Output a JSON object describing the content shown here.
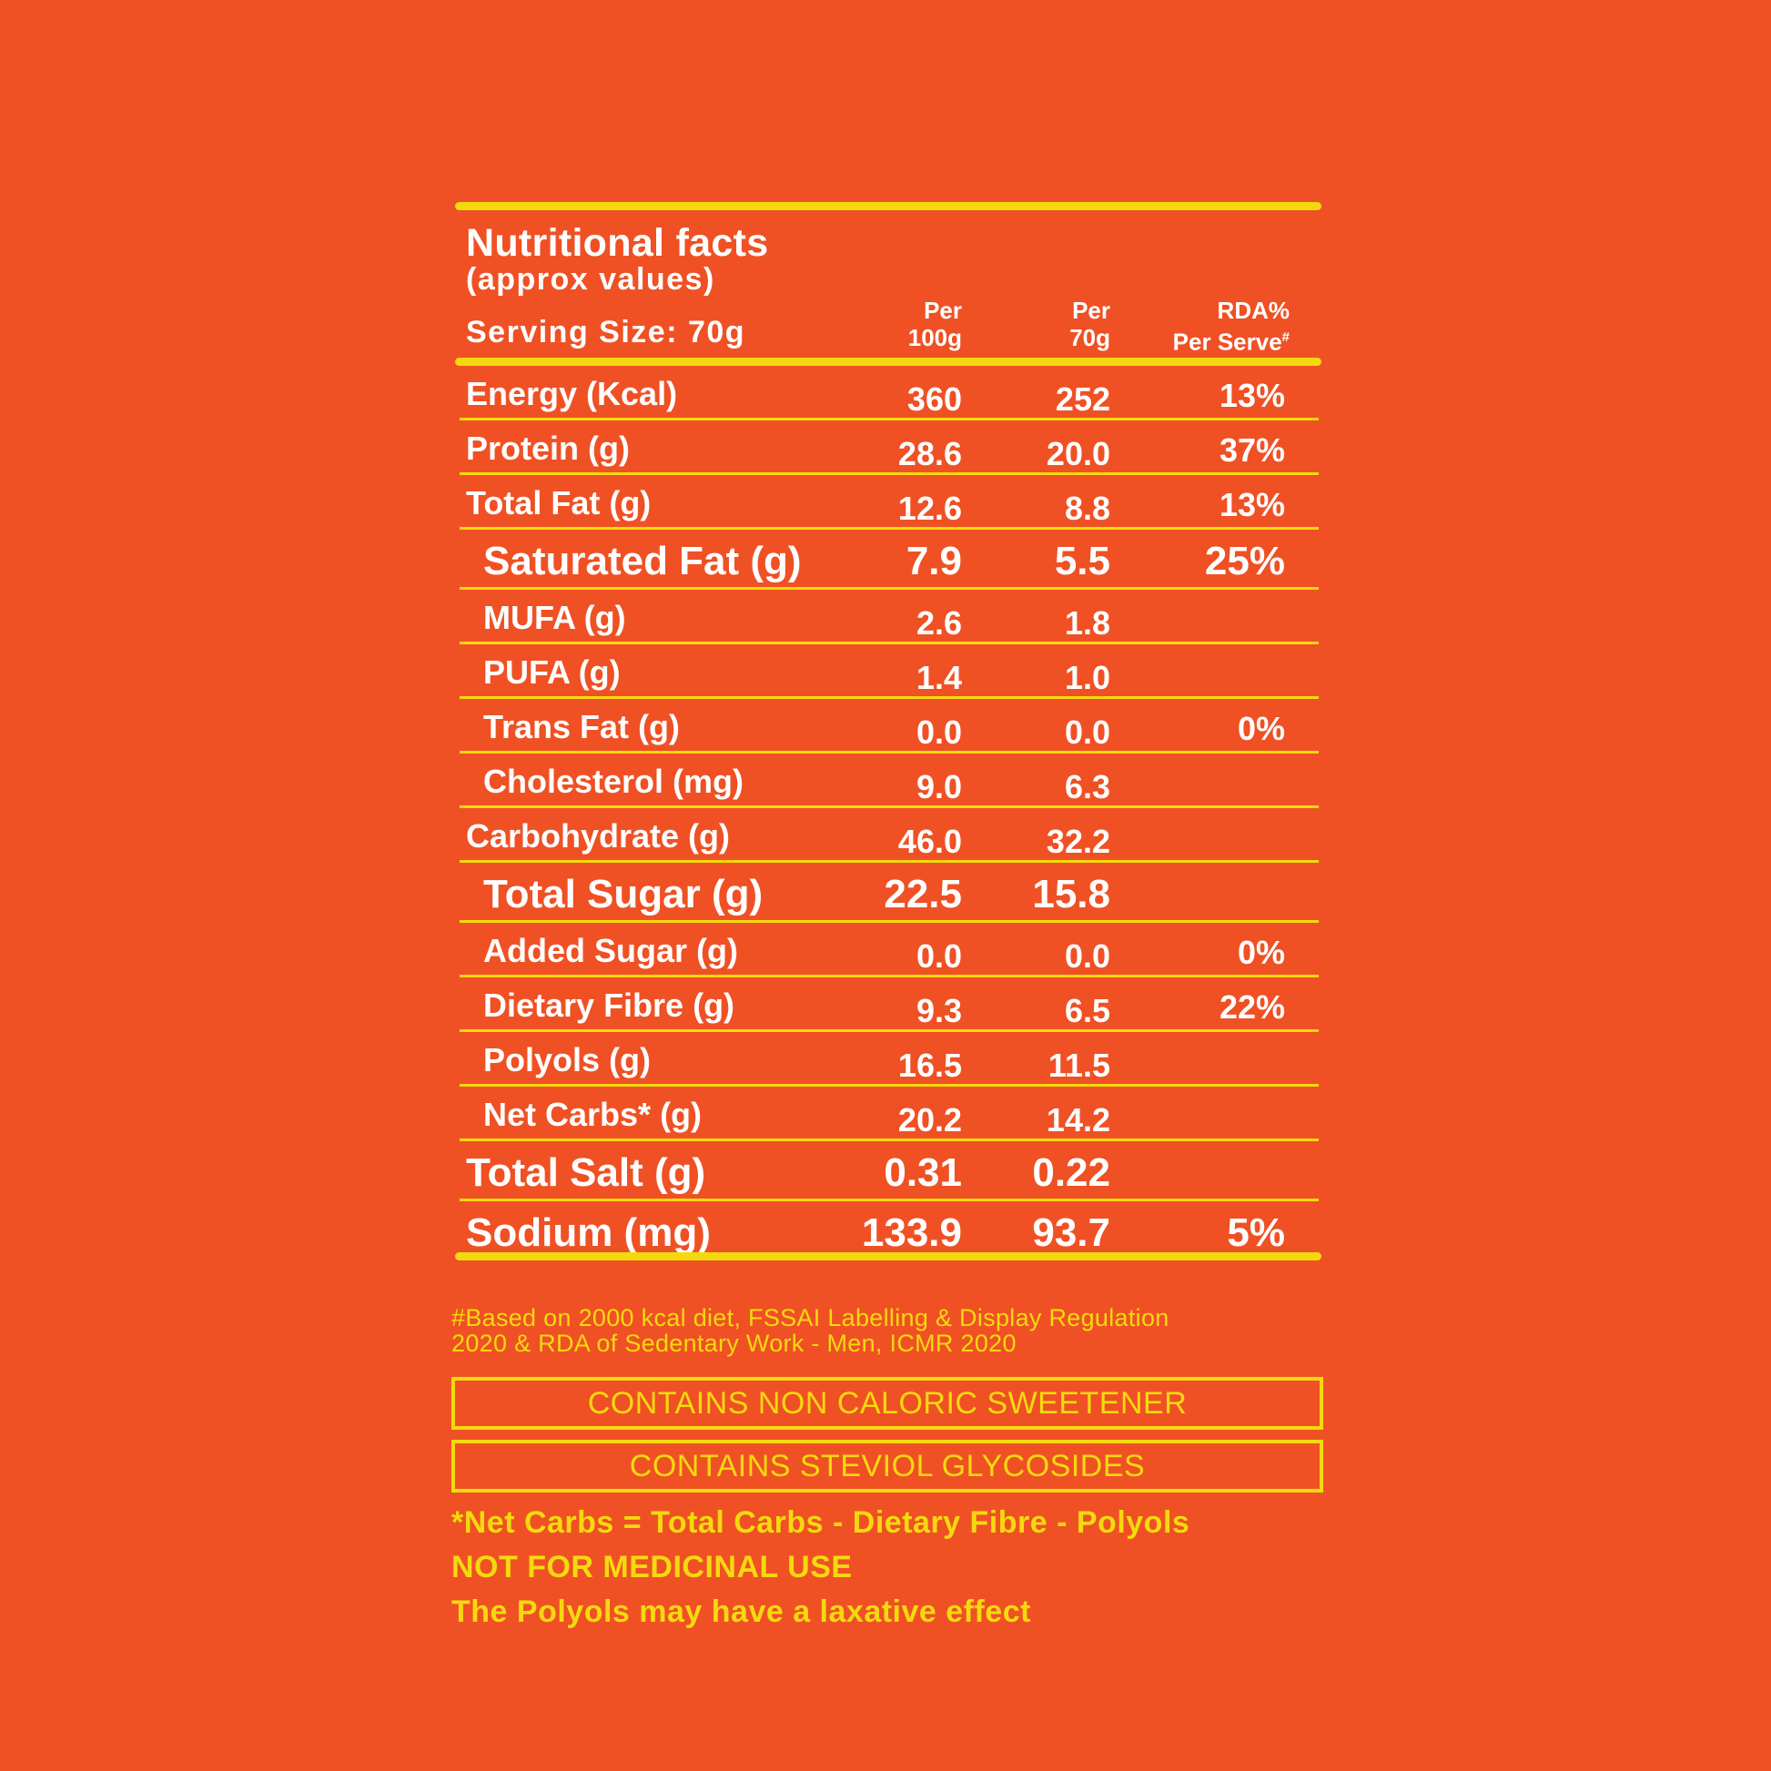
{
  "header": {
    "title": "Nutritional facts",
    "subtitle": "(approx values)",
    "serving": "Serving Size: 70g",
    "col1_line1": "Per",
    "col1_line2": "100g",
    "col2_line1": "Per",
    "col2_line2": "70g",
    "col3_line1": "RDA%",
    "col3_line2": "Per Serve",
    "col3_mark": "#"
  },
  "rows": [
    {
      "name": "Energy (Kcal)",
      "per100": "360",
      "per70": "252",
      "rda": "13%"
    },
    {
      "name": "Protein (g)",
      "per100": "28.6",
      "per70": "20.0",
      "rda": "37%"
    },
    {
      "name": "Total Fat (g)",
      "per100": "12.6",
      "per70": "8.8",
      "rda": "13%"
    },
    {
      "name": "Saturated Fat (g)",
      "per100": "7.9",
      "per70": "5.5",
      "rda": "25%"
    },
    {
      "name": "MUFA (g)",
      "per100": "2.6",
      "per70": "1.8",
      "rda": ""
    },
    {
      "name": "PUFA (g)",
      "per100": "1.4",
      "per70": "1.0",
      "rda": ""
    },
    {
      "name": "Trans Fat (g)",
      "per100": "0.0",
      "per70": "0.0",
      "rda": "0%"
    },
    {
      "name": "Cholesterol (mg)",
      "per100": "9.0",
      "per70": "6.3",
      "rda": ""
    },
    {
      "name": "Carbohydrate (g)",
      "per100": "46.0",
      "per70": "32.2",
      "rda": ""
    },
    {
      "name": "Total Sugar (g)",
      "per100": "22.5",
      "per70": "15.8",
      "rda": ""
    },
    {
      "name": "Added Sugar (g)",
      "per100": "0.0",
      "per70": "0.0",
      "rda": "0%"
    },
    {
      "name": "Dietary Fibre (g)",
      "per100": "9.3",
      "per70": "6.5",
      "rda": "22%"
    },
    {
      "name": "Polyols (g)",
      "per100": "16.5",
      "per70": "11.5",
      "rda": ""
    },
    {
      "name": "Net Carbs* (g)",
      "per100": "20.2",
      "per70": "14.2",
      "rda": ""
    },
    {
      "name": "Total Salt (g)",
      "per100": "0.31",
      "per70": "0.22",
      "rda": ""
    },
    {
      "name": "Sodium (mg)",
      "per100": "133.9",
      "per70": "93.7",
      "rda": "5%"
    }
  ],
  "footer": {
    "note_line1": "#Based on 2000 kcal diet, FSSAI Labelling & Display Regulation",
    "note_line2": "2020 & RDA of Sedentary Work - Men, ICMR 2020",
    "box1": "CONTAINS NON CALORIC SWEETENER",
    "box2": "CONTAINS STEVIOL GLYCOSIDES",
    "net_carbs": "*Net Carbs = Total Carbs - Dietary Fibre - Polyols",
    "medicinal": "NOT FOR MEDICINAL USE",
    "laxative": "The Polyols may have a laxative effect"
  },
  "colors": {
    "background": "#ef5124",
    "accent": "#f5d90f",
    "text": "#ffffff"
  }
}
